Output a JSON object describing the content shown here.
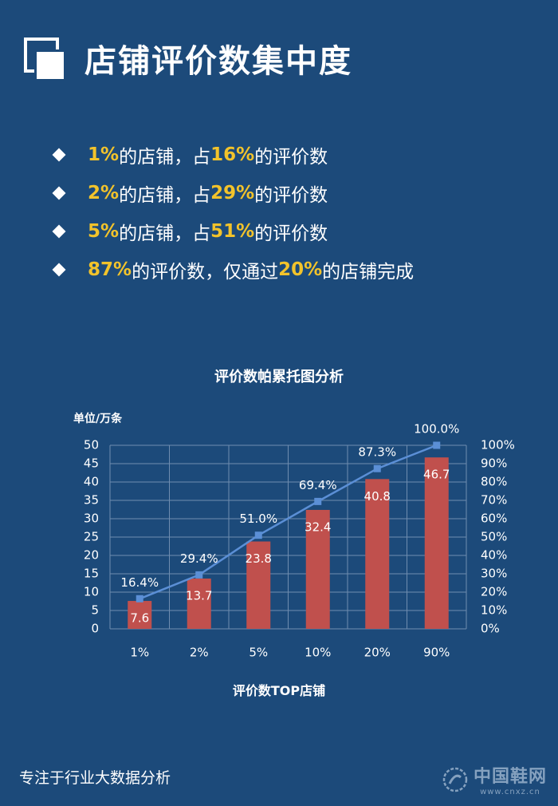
{
  "header": {
    "title": "店铺评价数集中度"
  },
  "bullets": [
    {
      "a": "1%",
      "b": "的店铺，占",
      "c": "16%",
      "d": "的评价数"
    },
    {
      "a": "2%",
      "b": "的店铺，占",
      "c": "29%",
      "d": "的评价数"
    },
    {
      "a": "5%",
      "b": "的店铺，占",
      "c": "51%",
      "d": "的评价数"
    },
    {
      "a": "87%",
      "b": "的评价数，仅通过",
      "c": "20%",
      "d": "的店铺完成"
    }
  ],
  "colors": {
    "background": "#1c4a7a",
    "highlight": "#f2c32b",
    "bar": "#c0504d",
    "line": "#5b8fd6"
  },
  "chart_data": {
    "type": "bar+line",
    "title": "评价数帕累托图分析",
    "unit_label": "单位/万条",
    "xlabel": "评价数TOP店铺",
    "categories": [
      "1%",
      "2%",
      "5%",
      "10%",
      "20%",
      "90%"
    ],
    "series": [
      {
        "type": "bar",
        "axis": "left",
        "values": [
          7.6,
          13.7,
          23.8,
          32.4,
          40.8,
          46.7
        ]
      },
      {
        "type": "line",
        "axis": "right",
        "values": [
          16.4,
          29.4,
          51.0,
          69.4,
          87.3,
          100.0
        ],
        "value_labels": [
          "16.4%",
          "29.4%",
          "51.0%",
          "69.4%",
          "87.3%",
          "100.0%"
        ]
      }
    ],
    "ylim_left": [
      0,
      50
    ],
    "yticks_left": [
      "0",
      "5",
      "10",
      "15",
      "20",
      "25",
      "30",
      "35",
      "40",
      "45",
      "50"
    ],
    "ylim_right": [
      0,
      100
    ],
    "yticks_right": [
      "0%",
      "10%",
      "20%",
      "30%",
      "40%",
      "50%",
      "60%",
      "70%",
      "80%",
      "90%",
      "100%"
    ],
    "grid": true
  },
  "footer": {
    "text": "专注于行业大数据分析"
  },
  "watermark": {
    "brand": "中国鞋网",
    "url": "www.cnxz.cn"
  }
}
